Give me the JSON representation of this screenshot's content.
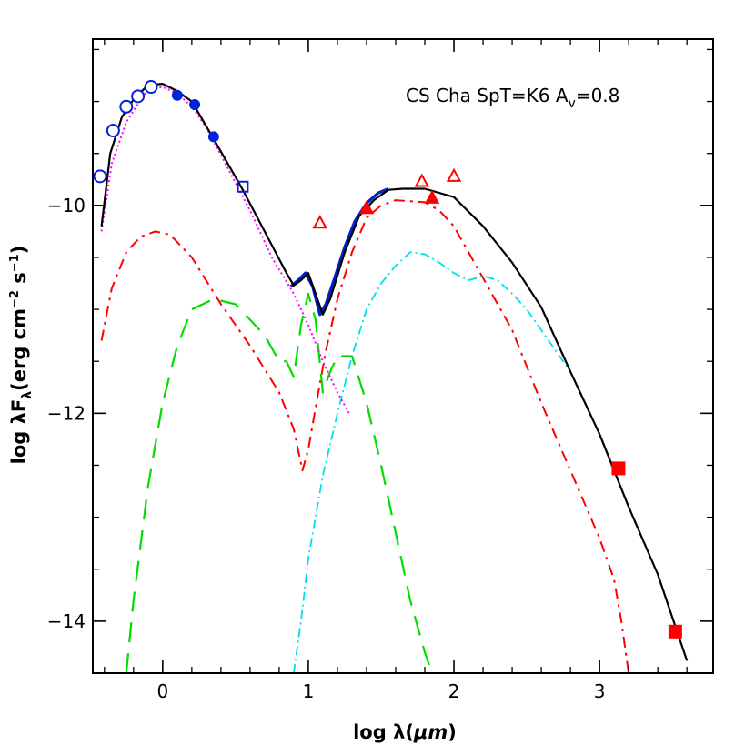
{
  "chart_data": {
    "type": "line",
    "annotation": {
      "main": "CS Cha SpT=K6 A",
      "sub": "v",
      "suffix": "=0.8"
    },
    "xlabel": {
      "prefix": "log λ(",
      "unit": "μm",
      "suffix": ")"
    },
    "ylabel": {
      "prefix": "log λF",
      "sub": "λ",
      "mid": "(erg cm",
      "sup1": "−2",
      "mid2": " s",
      "sup2": "−1",
      "suffix": ")"
    },
    "xlim": [
      -0.48,
      3.78
    ],
    "ylim": [
      -14.5,
      -8.4
    ],
    "x_ticks": [
      {
        "value": 0,
        "label": "0"
      },
      {
        "value": 1,
        "label": "1"
      },
      {
        "value": 2,
        "label": "2"
      },
      {
        "value": 3,
        "label": "3"
      }
    ],
    "y_ticks": [
      {
        "value": -10,
        "label": "−10"
      },
      {
        "value": -12,
        "label": "−12"
      },
      {
        "value": -14,
        "label": "−14"
      }
    ],
    "series": [
      {
        "name": "total model",
        "color": "#000000",
        "style": "solid",
        "points": [
          [
            -0.42,
            -10.2
          ],
          [
            -0.36,
            -9.5
          ],
          [
            -0.28,
            -9.15
          ],
          [
            -0.2,
            -8.98
          ],
          [
            -0.1,
            -8.84
          ],
          [
            0,
            -8.83
          ],
          [
            0.1,
            -8.9
          ],
          [
            0.2,
            -9.0
          ],
          [
            0.35,
            -9.36
          ],
          [
            0.55,
            -9.85
          ],
          [
            0.7,
            -10.25
          ],
          [
            0.85,
            -10.65
          ],
          [
            0.9,
            -10.77
          ],
          [
            0.95,
            -10.72
          ],
          [
            1.0,
            -10.65
          ],
          [
            1.05,
            -10.85
          ],
          [
            1.1,
            -11.05
          ],
          [
            1.15,
            -10.9
          ],
          [
            1.25,
            -10.45
          ],
          [
            1.35,
            -10.1
          ],
          [
            1.45,
            -9.95
          ],
          [
            1.55,
            -9.85
          ],
          [
            1.65,
            -9.84
          ],
          [
            1.8,
            -9.84
          ],
          [
            2.0,
            -9.92
          ],
          [
            2.2,
            -10.2
          ],
          [
            2.4,
            -10.55
          ],
          [
            2.6,
            -10.98
          ],
          [
            2.8,
            -11.6
          ],
          [
            3.0,
            -12.2
          ],
          [
            3.2,
            -12.9
          ],
          [
            3.4,
            -13.55
          ],
          [
            3.6,
            -14.38
          ]
        ]
      },
      {
        "name": "photosphere (dotted)",
        "color": "#ff00ff",
        "style": "dotted",
        "points": [
          [
            -0.42,
            -10.25
          ],
          [
            -0.35,
            -9.6
          ],
          [
            -0.25,
            -9.2
          ],
          [
            -0.15,
            -8.98
          ],
          [
            -0.1,
            -8.88
          ],
          [
            0,
            -8.86
          ],
          [
            0.1,
            -8.92
          ],
          [
            0.2,
            -9.05
          ],
          [
            0.3,
            -9.25
          ],
          [
            0.45,
            -9.65
          ],
          [
            0.6,
            -10.05
          ],
          [
            0.75,
            -10.5
          ],
          [
            0.9,
            -10.85
          ],
          [
            1.0,
            -11.15
          ],
          [
            1.1,
            -11.5
          ],
          [
            1.2,
            -11.8
          ],
          [
            1.28,
            -12.0
          ]
        ]
      },
      {
        "name": "observed spectrum",
        "color": "#0022cc",
        "style": "solid-thick",
        "points": [
          [
            0.88,
            -10.78
          ],
          [
            0.93,
            -10.72
          ],
          [
            0.98,
            -10.65
          ],
          [
            1.03,
            -10.78
          ],
          [
            1.08,
            -11.05
          ],
          [
            1.12,
            -10.95
          ],
          [
            1.18,
            -10.7
          ],
          [
            1.25,
            -10.4
          ],
          [
            1.32,
            -10.15
          ],
          [
            1.4,
            -9.98
          ],
          [
            1.48,
            -9.88
          ],
          [
            1.55,
            -9.84
          ]
        ]
      },
      {
        "name": "outer wall (short dash)",
        "color": "#ff0000",
        "style": "short-dash",
        "points": [
          [
            -0.42,
            -11.3
          ],
          [
            -0.35,
            -10.8
          ],
          [
            -0.25,
            -10.45
          ],
          [
            -0.15,
            -10.3
          ],
          [
            -0.05,
            -10.25
          ],
          [
            0.05,
            -10.28
          ],
          [
            0.2,
            -10.5
          ],
          [
            0.4,
            -10.95
          ],
          [
            0.6,
            -11.35
          ],
          [
            0.8,
            -11.8
          ],
          [
            0.9,
            -12.15
          ],
          [
            0.96,
            -12.55
          ],
          [
            1.0,
            -12.35
          ],
          [
            1.05,
            -11.95
          ],
          [
            1.12,
            -11.4
          ],
          [
            1.2,
            -10.9
          ],
          [
            1.3,
            -10.45
          ],
          [
            1.4,
            -10.12
          ],
          [
            1.5,
            -10.0
          ],
          [
            1.6,
            -9.95
          ],
          [
            1.8,
            -9.97
          ],
          [
            1.9,
            -10.05
          ],
          [
            2.0,
            -10.2
          ],
          [
            2.2,
            -10.7
          ],
          [
            2.4,
            -11.2
          ],
          [
            2.6,
            -11.9
          ],
          [
            2.8,
            -12.55
          ],
          [
            3.0,
            -13.2
          ],
          [
            3.1,
            -13.6
          ],
          [
            3.15,
            -14.0
          ],
          [
            3.2,
            -14.5
          ]
        ]
      },
      {
        "name": "optically thin inner disk (long dash)",
        "color": "#00dd00",
        "style": "long-dash",
        "points": [
          [
            -0.25,
            -14.5
          ],
          [
            -0.2,
            -13.8
          ],
          [
            -0.1,
            -12.7
          ],
          [
            0,
            -11.9
          ],
          [
            0.1,
            -11.35
          ],
          [
            0.2,
            -11.0
          ],
          [
            0.35,
            -10.9
          ],
          [
            0.5,
            -10.95
          ],
          [
            0.6,
            -11.1
          ],
          [
            0.7,
            -11.25
          ],
          [
            0.8,
            -11.5
          ],
          [
            0.85,
            -11.5
          ],
          [
            0.9,
            -11.65
          ],
          [
            0.95,
            -11.15
          ],
          [
            1.0,
            -10.85
          ],
          [
            1.05,
            -11.1
          ],
          [
            1.1,
            -11.8
          ],
          [
            1.15,
            -11.6
          ],
          [
            1.2,
            -11.45
          ],
          [
            1.3,
            -11.45
          ],
          [
            1.4,
            -11.9
          ],
          [
            1.5,
            -12.5
          ],
          [
            1.6,
            -13.15
          ],
          [
            1.7,
            -13.8
          ],
          [
            1.8,
            -14.3
          ],
          [
            1.85,
            -14.5
          ]
        ]
      },
      {
        "name": "outer disk (dot-dash)",
        "color": "#00ddee",
        "style": "dot-dash",
        "points": [
          [
            0.9,
            -14.5
          ],
          [
            0.95,
            -14.0
          ],
          [
            1.0,
            -13.4
          ],
          [
            1.1,
            -12.6
          ],
          [
            1.2,
            -12.0
          ],
          [
            1.3,
            -11.45
          ],
          [
            1.4,
            -11.0
          ],
          [
            1.5,
            -10.75
          ],
          [
            1.6,
            -10.58
          ],
          [
            1.7,
            -10.45
          ],
          [
            1.8,
            -10.47
          ],
          [
            1.9,
            -10.55
          ],
          [
            2.0,
            -10.65
          ],
          [
            2.1,
            -10.72
          ],
          [
            2.2,
            -10.68
          ],
          [
            2.3,
            -10.72
          ],
          [
            2.4,
            -10.85
          ],
          [
            2.5,
            -11.0
          ],
          [
            2.6,
            -11.2
          ],
          [
            2.8,
            -11.6
          ],
          [
            3.0,
            -12.2
          ],
          [
            3.2,
            -12.9
          ],
          [
            3.4,
            -13.55
          ],
          [
            3.6,
            -14.38
          ]
        ]
      }
    ],
    "markers": [
      {
        "name": "open circles (optical photometry)",
        "shape": "open-circle",
        "color": "#0022dd",
        "points": [
          [
            -0.43,
            -9.72
          ],
          [
            -0.34,
            -9.28
          ],
          [
            -0.25,
            -9.05
          ],
          [
            -0.17,
            -8.95
          ],
          [
            -0.08,
            -8.86
          ]
        ]
      },
      {
        "name": "filled circles (near-IR photometry)",
        "shape": "filled-circle",
        "color": "#0022dd",
        "points": [
          [
            0.1,
            -8.94
          ],
          [
            0.22,
            -9.03
          ],
          [
            0.35,
            -9.34
          ]
        ]
      },
      {
        "name": "open square",
        "shape": "open-square",
        "color": "#0022dd",
        "points": [
          [
            0.55,
            -9.82
          ]
        ]
      },
      {
        "name": "open triangles (upper limits)",
        "shape": "open-triangle",
        "color": "#ff0000",
        "points": [
          [
            1.08,
            -10.17
          ],
          [
            1.78,
            -9.77
          ],
          [
            2.0,
            -9.72
          ]
        ]
      },
      {
        "name": "filled triangles",
        "shape": "filled-triangle",
        "color": "#ff0000",
        "points": [
          [
            1.4,
            -10.03
          ],
          [
            1.85,
            -9.93
          ]
        ]
      },
      {
        "name": "filled squares (mm photometry)",
        "shape": "filled-square",
        "color": "#ff0000",
        "points": [
          [
            3.13,
            -12.53
          ],
          [
            3.52,
            -14.1
          ]
        ]
      }
    ]
  }
}
